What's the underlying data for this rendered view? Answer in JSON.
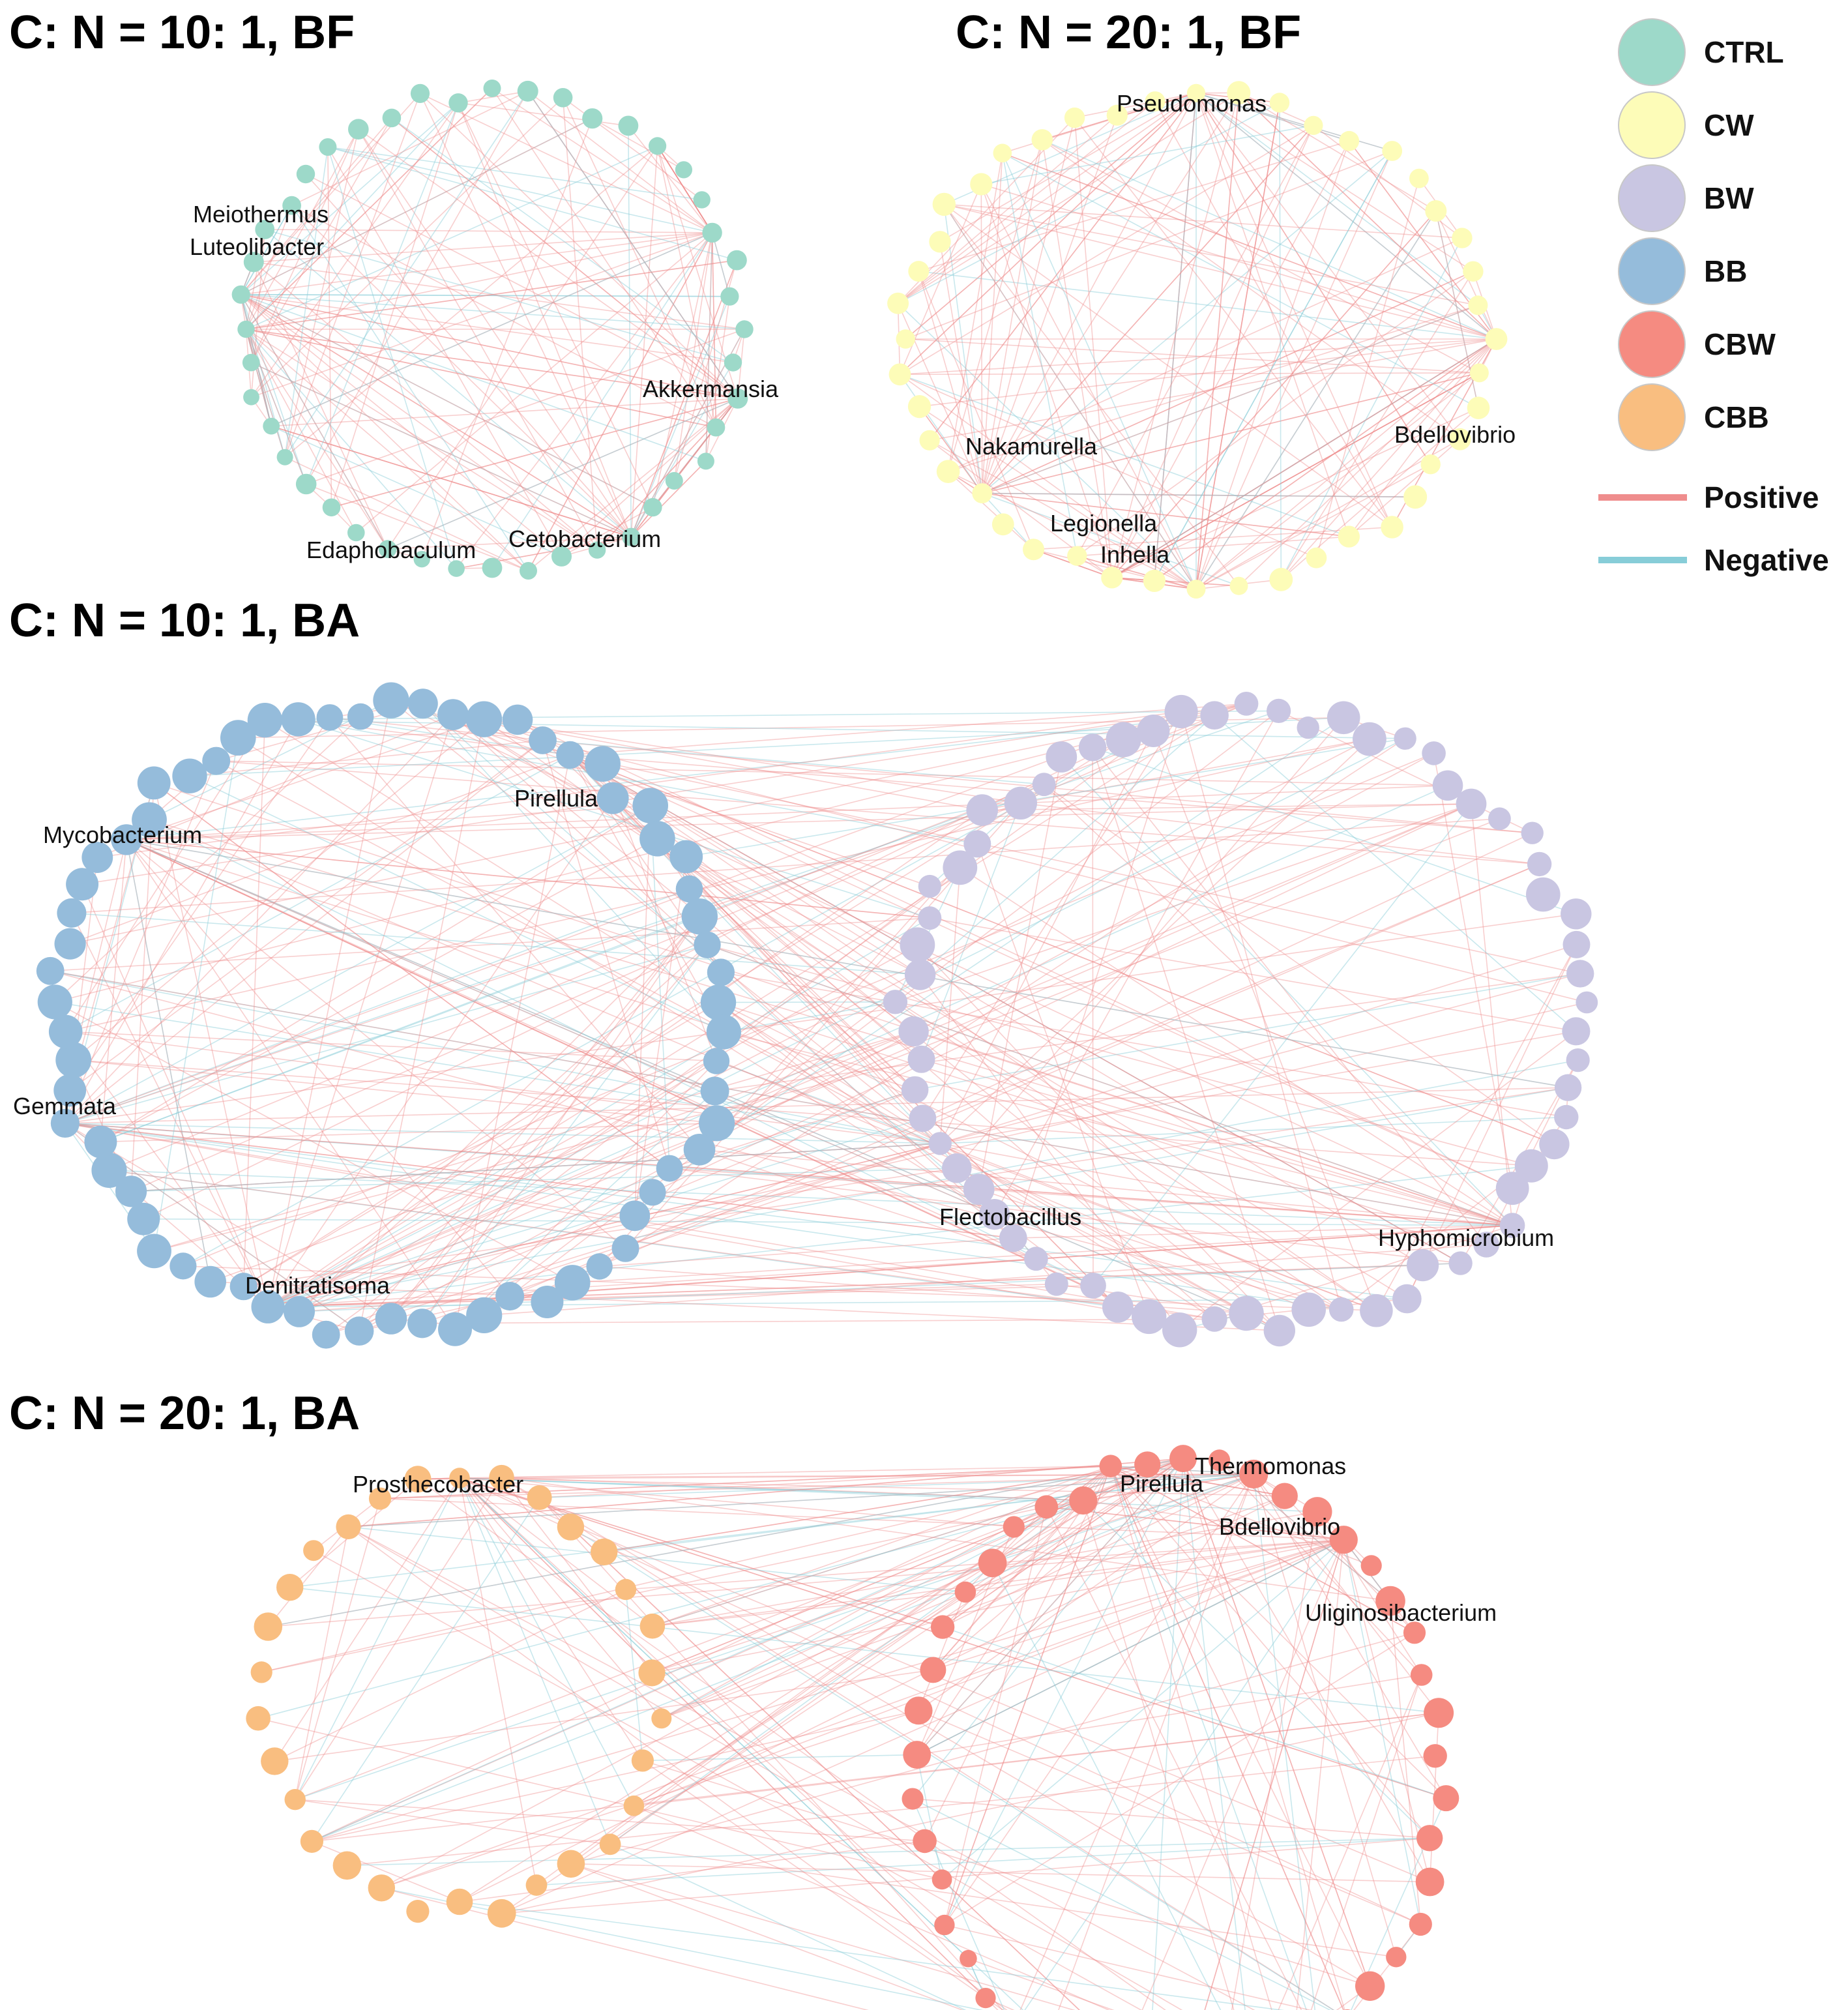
{
  "colors": {
    "CTRL": "#9dd9c9",
    "CW": "#fdfcb8",
    "BW": "#c9c6e2",
    "BB": "#95bcdb",
    "CBW": "#f58b81",
    "CBB": "#f9be80",
    "positive": "#ef8d8d",
    "negative": "#87cdd8"
  },
  "legend": {
    "groups": [
      {
        "key": "CTRL",
        "label": "CTRL"
      },
      {
        "key": "CW",
        "label": "CW"
      },
      {
        "key": "BW",
        "label": "BW"
      },
      {
        "key": "BB",
        "label": "BB"
      },
      {
        "key": "CBW",
        "label": "CBW"
      },
      {
        "key": "CBB",
        "label": "CBB"
      }
    ],
    "edges": [
      {
        "key": "positive",
        "label": "Positive"
      },
      {
        "key": "negative",
        "label": "Negative"
      }
    ]
  },
  "panels": [
    {
      "id": "p1",
      "title": "C: N = 10: 1, BF",
      "rings": [
        {
          "group": "CTRL",
          "count": 44,
          "size": [
            0.6,
            1.0
          ]
        }
      ],
      "labels": [
        {
          "text": "Meiothermus",
          "ring": 0,
          "node": 34
        },
        {
          "text": "Luteolibacter",
          "ring": 0,
          "node": 33
        },
        {
          "text": "Akkermansia",
          "ring": 0,
          "node": 8
        },
        {
          "text": "Edaphobaculum",
          "ring": 0,
          "node": 18
        },
        {
          "text": "Cetobacterium",
          "ring": 0,
          "node": 13
        }
      ]
    },
    {
      "id": "p2",
      "title": "C: N = 20: 1, BF",
      "rings": [
        {
          "group": "CW",
          "count": 44,
          "size": [
            0.6,
            1.0
          ]
        }
      ],
      "labels": [
        {
          "text": "Pseudomonas",
          "ring": 0,
          "node": 0
        },
        {
          "text": "Nakamurella",
          "ring": 0,
          "node": 28
        },
        {
          "text": "Bdellovibrio",
          "ring": 0,
          "node": 11
        },
        {
          "text": "Legionella",
          "ring": 0,
          "node": 24
        },
        {
          "text": "Inhella",
          "ring": 0,
          "node": 22
        }
      ]
    },
    {
      "id": "p3",
      "title": "C: N = 10: 1, BA",
      "rings": [
        {
          "group": "BB",
          "count": 66,
          "size": [
            0.5,
            1.0
          ]
        },
        {
          "group": "BW",
          "count": 66,
          "size": [
            0.4,
            1.0
          ]
        }
      ],
      "labels": [
        {
          "text": "Pirellula",
          "ring": 0,
          "node": 6
        },
        {
          "text": "Mycobacterium",
          "ring": 0,
          "node": 56
        },
        {
          "text": "Gemmata",
          "ring": 0,
          "node": 46
        },
        {
          "text": "Denitratisoma",
          "ring": 0,
          "node": 37
        },
        {
          "text": "Flectobacillus",
          "ring": 1,
          "node": 45
        },
        {
          "text": "Hyphomicrobium",
          "ring": 1,
          "node": 24
        }
      ]
    },
    {
      "id": "p4",
      "title": "C: N = 20: 1, BA",
      "rings": [
        {
          "group": "CBB",
          "count": 30,
          "size": [
            0.5,
            1.0
          ]
        },
        {
          "group": "CBW",
          "count": 46,
          "size": [
            0.35,
            1.0
          ]
        }
      ],
      "labels": [
        {
          "text": "Prosthecobacter",
          "ring": 0,
          "node": 0
        },
        {
          "text": "Thermomonas",
          "ring": 1,
          "node": 0
        },
        {
          "text": "Pirellula",
          "ring": 1,
          "node": 44
        },
        {
          "text": "Bdellovibrio",
          "ring": 1,
          "node": 2
        },
        {
          "text": "Uliginosibacterium",
          "ring": 1,
          "node": 5
        }
      ]
    }
  ]
}
